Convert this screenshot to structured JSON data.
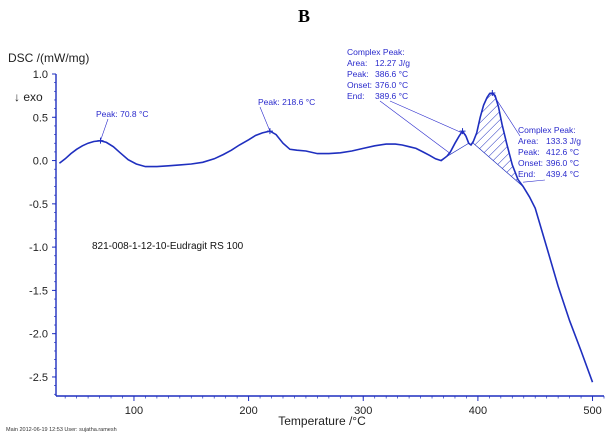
{
  "panel_label": "B",
  "chart_data": {
    "type": "line",
    "ylabel": "DSC /(mW/mg)",
    "exo_label": "↓ exo",
    "xlabel": "Temperature /°C",
    "xlim": [
      32,
      510
    ],
    "ylim": [
      -2.72,
      1.0
    ],
    "x_ticks": [
      100,
      200,
      300,
      400,
      500
    ],
    "y_ticks": [
      "1.0",
      "0.5",
      "0.0",
      "-0.5",
      "-1.0",
      "-1.5",
      "-2.0",
      "-2.5"
    ],
    "y_tick_values": [
      1.0,
      0.5,
      0.0,
      -0.5,
      -1.0,
      -1.5,
      -2.0,
      -2.5
    ],
    "grid": false,
    "sample_label": "821-008-1-12-10-Eudragit RS 100",
    "footer": "Main   2012-06-19 12:53   User: sujatha.ramesh",
    "series": [
      {
        "color": "#1f2fbf",
        "x": [
          35,
          40,
          45,
          50,
          55,
          60,
          65,
          70.8,
          76,
          82,
          88,
          95,
          102,
          110,
          120,
          130,
          140,
          150,
          160,
          170,
          178,
          185,
          192,
          200,
          206,
          212,
          218.6,
          224,
          230,
          236,
          242,
          250,
          260,
          270,
          280,
          290,
          300,
          310,
          320,
          328,
          334,
          340,
          346,
          352,
          358,
          363,
          368,
          373,
          376,
          380,
          383.5,
          386.6,
          389.6,
          392,
          394,
          396,
          399,
          402,
          405,
          408,
          410,
          412.6,
          415,
          418,
          421,
          425,
          430,
          435,
          439.4,
          445,
          450,
          460,
          470,
          480,
          490,
          500
        ],
        "y": [
          -0.03,
          0.02,
          0.08,
          0.13,
          0.17,
          0.2,
          0.22,
          0.23,
          0.21,
          0.16,
          0.09,
          0.01,
          -0.04,
          -0.07,
          -0.07,
          -0.06,
          -0.05,
          -0.04,
          -0.02,
          0.02,
          0.07,
          0.12,
          0.18,
          0.24,
          0.29,
          0.32,
          0.34,
          0.3,
          0.2,
          0.13,
          0.12,
          0.11,
          0.08,
          0.08,
          0.09,
          0.11,
          0.14,
          0.17,
          0.19,
          0.19,
          0.18,
          0.16,
          0.14,
          0.1,
          0.06,
          0.02,
          0.0,
          0.05,
          0.1,
          0.2,
          0.28,
          0.34,
          0.28,
          0.2,
          0.18,
          0.22,
          0.32,
          0.5,
          0.64,
          0.73,
          0.77,
          0.78,
          0.75,
          0.62,
          0.42,
          0.2,
          -0.05,
          -0.22,
          -0.3,
          -0.42,
          -0.55,
          -1.0,
          -1.45,
          -1.85,
          -2.2,
          -2.56
        ]
      }
    ],
    "peak_markers": [
      {
        "x": 70.8,
        "y": 0.23
      },
      {
        "x": 218.6,
        "y": 0.34
      },
      {
        "x": 386.6,
        "y": 0.34
      },
      {
        "x": 412.6,
        "y": 0.78
      }
    ],
    "hatched_region": {
      "x_start": 396.0,
      "x_end": 439.4,
      "baseline_start_y": 0.2,
      "baseline_end_y": -0.3
    },
    "annotations": {
      "peak1": "Peak: 70.8 °C",
      "peak2": "Peak: 218.6 °C",
      "complex1": {
        "title": "Complex Peak:",
        "lines": [
          [
            "Area:",
            "12.27 J/g"
          ],
          [
            "Peak:",
            "386.6 °C"
          ],
          [
            "Onset:",
            "376.0 °C"
          ],
          [
            "End:",
            "389.6 °C"
          ]
        ]
      },
      "complex2": {
        "title": "Complex Peak:",
        "lines": [
          [
            "Area:",
            "133.3 J/g"
          ],
          [
            "Peak:",
            "412.6 °C"
          ],
          [
            "Onset:",
            "396.0 °C"
          ],
          [
            "End:",
            "439.4 °C"
          ]
        ]
      }
    }
  }
}
